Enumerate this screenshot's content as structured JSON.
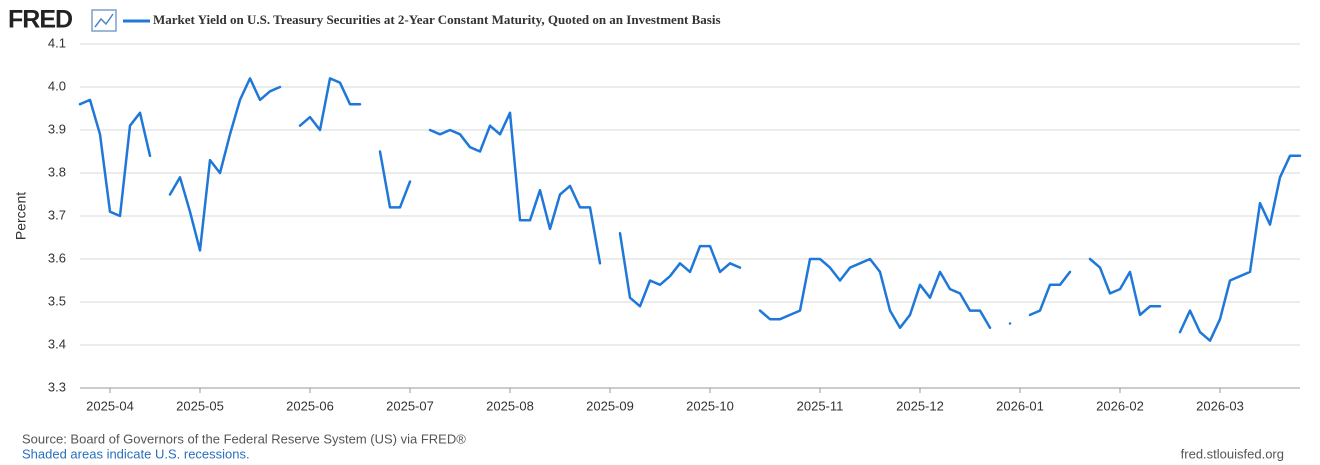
{
  "brand": "FRED",
  "chart_data": {
    "type": "line",
    "y_label": "Percent",
    "categories": [
      null,
      null,
      null,
      "2025-04",
      null,
      null,
      null,
      null,
      null,
      null,
      null,
      null,
      "2025-05",
      null,
      null,
      null,
      null,
      null,
      null,
      null,
      null,
      null,
      null,
      "2025-06",
      null,
      null,
      null,
      null,
      null,
      null,
      null,
      null,
      null,
      "2025-07",
      null,
      null,
      null,
      null,
      null,
      null,
      null,
      null,
      null,
      "2025-08",
      null,
      null,
      null,
      null,
      null,
      null,
      null,
      null,
      null,
      "2025-09",
      null,
      null,
      null,
      null,
      null,
      null,
      null,
      null,
      null,
      "2025-10",
      null,
      null,
      null,
      null,
      null,
      null,
      null,
      null,
      null,
      null,
      "2025-11",
      null,
      null,
      null,
      null,
      null,
      null,
      null,
      null,
      null,
      "2025-12",
      null,
      null,
      null,
      null,
      null,
      null,
      null,
      null,
      null,
      "2026-01",
      null,
      null,
      null,
      null,
      null,
      null,
      null,
      null,
      null,
      "2026-02",
      null,
      null,
      null,
      null,
      null,
      null,
      null,
      null,
      null,
      "2026-03",
      null,
      null,
      null,
      null,
      null,
      null,
      null,
      null
    ],
    "series": [
      {
        "name": "Market Yield on U.S. Treasury Securities at 2-Year Constant Maturity, Quoted on an Investment Basis",
        "color": "#1f78d8",
        "values": [
          3.96,
          3.97,
          3.89,
          3.71,
          3.7,
          3.91,
          3.94,
          3.84,
          null,
          3.75,
          3.79,
          3.71,
          3.62,
          3.83,
          3.8,
          3.89,
          3.97,
          4.02,
          3.97,
          3.99,
          4.0,
          null,
          3.91,
          3.93,
          3.9,
          4.02,
          4.01,
          3.96,
          3.96,
          null,
          3.85,
          3.72,
          3.72,
          3.78,
          null,
          3.9,
          3.89,
          3.9,
          3.89,
          3.86,
          3.85,
          3.91,
          3.89,
          3.94,
          3.69,
          3.69,
          3.76,
          3.67,
          3.75,
          3.77,
          3.72,
          3.72,
          3.59,
          null,
          3.66,
          3.51,
          3.49,
          3.55,
          3.54,
          3.56,
          3.59,
          3.57,
          3.63,
          3.63,
          3.57,
          3.59,
          3.58,
          null,
          3.48,
          3.46,
          3.46,
          3.47,
          3.48,
          3.6,
          3.6,
          3.58,
          3.55,
          3.58,
          3.59,
          3.6,
          3.57,
          3.48,
          3.44,
          3.47,
          3.54,
          3.51,
          3.57,
          3.53,
          3.52,
          3.48,
          3.48,
          3.44,
          null,
          3.45,
          null,
          3.47,
          3.48,
          3.54,
          3.54,
          3.57,
          null,
          3.6,
          3.58,
          3.52,
          3.53,
          3.57,
          3.47,
          3.49,
          3.49,
          null,
          3.43,
          3.48,
          3.43,
          3.41,
          3.46,
          3.55,
          3.56,
          3.57,
          3.73,
          3.68,
          3.79,
          3.84,
          3.84
        ]
      }
    ],
    "ylim": [
      3.3,
      4.1
    ],
    "yticks": [
      3.3,
      3.4,
      3.5,
      3.6,
      3.7,
      3.8,
      3.9,
      {
        "value": 4,
        "label": "4.0"
      },
      4.1
    ],
    "grid": true
  },
  "footer": {
    "source": "Source: Board of Governors of the Federal Reserve System (US) via FRED®",
    "note": "Shaded areas indicate U.S. recessions.",
    "site": "fred.stlouisfed.org"
  }
}
